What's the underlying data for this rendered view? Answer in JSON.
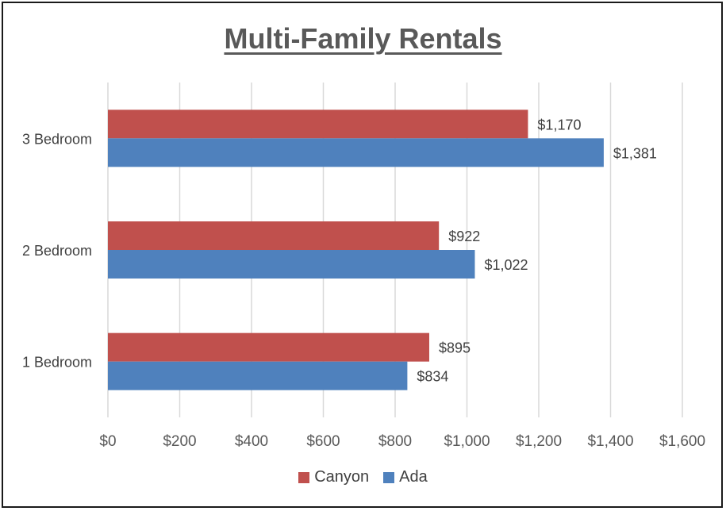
{
  "chart_data": {
    "type": "bar",
    "orientation": "horizontal",
    "title": "Multi-Family Rentals",
    "categories": [
      "3 Bedroom",
      "2 Bedroom",
      "1 Bedroom"
    ],
    "series": [
      {
        "name": "Canyon",
        "color": "#c0504d",
        "values": [
          1170,
          922,
          895
        ],
        "labels": [
          "$1,170",
          "$922",
          "$895"
        ]
      },
      {
        "name": "Ada",
        "color": "#4f81bd",
        "values": [
          1381,
          1022,
          834
        ],
        "labels": [
          "$1,381",
          "$1,022",
          "$834"
        ]
      }
    ],
    "xlim": [
      0,
      1600
    ],
    "xticks": [
      0,
      200,
      400,
      600,
      800,
      1000,
      1200,
      1400,
      1600
    ],
    "xtick_labels": [
      "$0",
      "$200",
      "$400",
      "$600",
      "$800",
      "$1,000",
      "$1,200",
      "$1,400",
      "$1,600"
    ],
    "grid": true,
    "legend_position": "bottom"
  }
}
